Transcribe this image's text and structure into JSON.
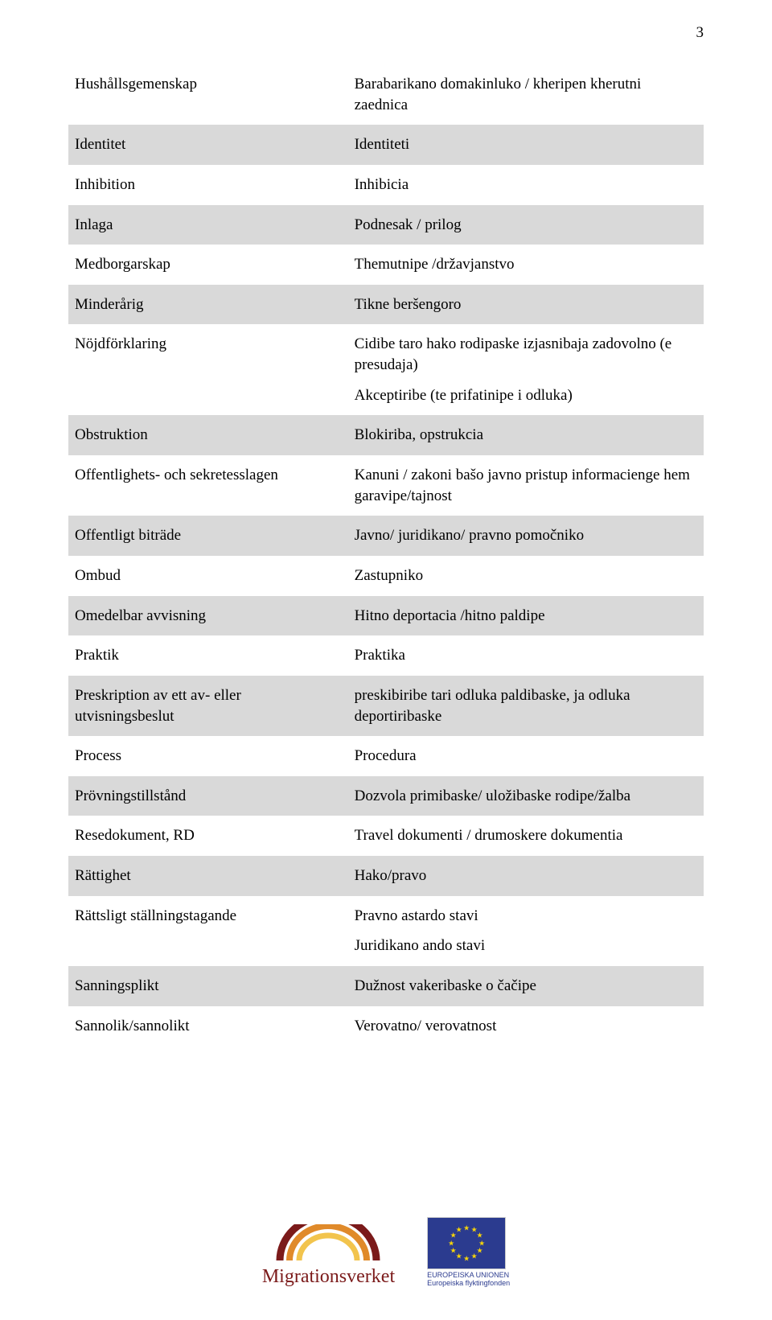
{
  "page_number": "3",
  "rows": [
    {
      "term": "Hushållsgemenskap",
      "definition": [
        "Barabarikano domakinluko / kheripen kherutni zaednica"
      ],
      "shaded": false
    },
    {
      "term": "Identitet",
      "definition": [
        "Identiteti"
      ],
      "shaded": true
    },
    {
      "term": "Inhibition",
      "definition": [
        "Inhibicia"
      ],
      "shaded": false
    },
    {
      "term": "Inlaga",
      "definition": [
        "Podnesak / prilog"
      ],
      "shaded": true
    },
    {
      "term": "Medborgarskap",
      "definition": [
        "Themutnipe /državjanstvo"
      ],
      "shaded": false
    },
    {
      "term": "Minderårig",
      "definition": [
        "Tikne beršengoro"
      ],
      "shaded": true
    },
    {
      "term": "Nöjdförklaring",
      "definition": [
        "Cidibe taro hako rodipaske izjasnibaja zadovolno (e presudaja)",
        "Akceptiribe (te prifatinipe i odluka)"
      ],
      "shaded": false
    },
    {
      "term": "Obstruktion",
      "definition": [
        "Blokiriba, opstrukcia"
      ],
      "shaded": true
    },
    {
      "term": "Offentlighets- och sekretesslagen",
      "definition": [
        "Kanuni / zakoni bašo javno pristup informacienge hem garavipe/tajnost"
      ],
      "shaded": false
    },
    {
      "term": "Offentligt biträde",
      "definition": [
        "Javno/ juridikano/ pravno pomočniko"
      ],
      "shaded": true
    },
    {
      "term": "Ombud",
      "definition": [
        "Zastupniko"
      ],
      "shaded": false
    },
    {
      "term": "Omedelbar avvisning",
      "definition": [
        "Hitno deportacia /hitno paldipe"
      ],
      "shaded": true
    },
    {
      "term": "Praktik",
      "definition": [
        "Praktika"
      ],
      "shaded": false
    },
    {
      "term": "Preskription av ett av- eller utvisningsbeslut",
      "definition": [
        "preskibiribe tari odluka paldibaske, ja odluka deportiribaske"
      ],
      "shaded": true
    },
    {
      "term": "Process",
      "definition": [
        "Procedura"
      ],
      "shaded": false
    },
    {
      "term": "Prövningstillstånd",
      "definition": [
        "Dozvola primibaske/ uložibaske rodipe/žalba"
      ],
      "shaded": true
    },
    {
      "term": "Resedokument, RD",
      "definition": [
        "Travel dokumenti / drumoskere dokumentia"
      ],
      "shaded": false
    },
    {
      "term": "Rättighet",
      "definition": [
        "Hako/pravo"
      ],
      "shaded": true
    },
    {
      "term": "Rättsligt ställningstagande",
      "definition": [
        "Pravno astardo stavi",
        "Juridikano ando stavi"
      ],
      "shaded": false
    },
    {
      "term": "Sanningsplikt",
      "definition": [
        "Dužnost vakeribaske o čačipe"
      ],
      "shaded": true
    },
    {
      "term": "Sannolik/sannolikt",
      "definition": [
        "Verovatno/ verovatnost"
      ],
      "shaded": false
    }
  ],
  "footer": {
    "migrationsverket": "Migrationsverket",
    "eu_line1": "EUROPEISKA UNIONEN",
    "eu_line2": "Europeiska flyktingfonden"
  },
  "colors": {
    "shaded_row": "#d9d9d9",
    "logo_text": "#7b1a1a",
    "eu_flag_bg": "#2b3b8f",
    "eu_star": "#f7d40a",
    "arc_outer": "#7b1a1a",
    "arc_mid": "#e08a2a",
    "arc_inner": "#f2c44d"
  }
}
